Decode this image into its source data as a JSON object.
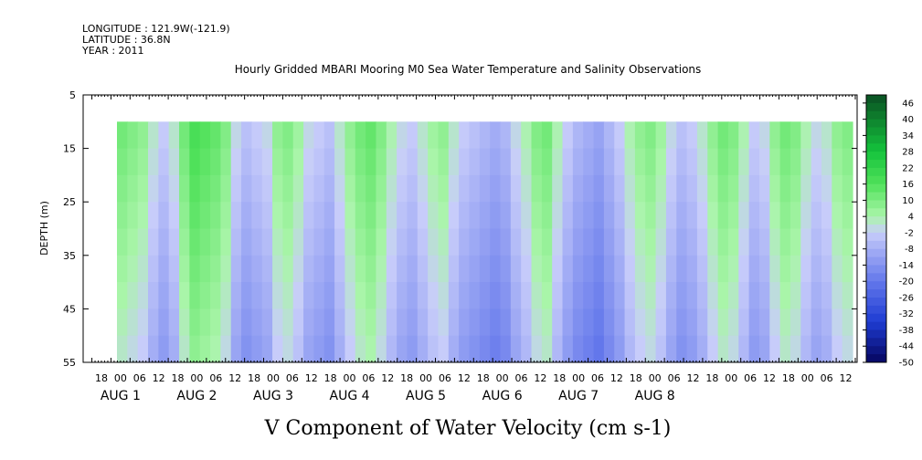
{
  "header": {
    "longitude": "LONGITUDE : 121.9W(-121.9)",
    "latitude": "LATITUDE : 36.8N",
    "year": "YEAR : 2011"
  },
  "chart_data": {
    "type": "heatmap",
    "title": "Hourly Gridded MBARI Mooring M0 Sea Water Temperature and Salinity Observations",
    "xlabel": "V Component of Water Velocity (cm s-1)",
    "ylabel": "DEPTH (m)",
    "y_ticks": [
      "5",
      "15",
      "25",
      "35",
      "45",
      "55"
    ],
    "ylim": [
      5,
      55
    ],
    "y_inverted": true,
    "data_depth_range": [
      10,
      55
    ],
    "hour_ticks": [
      "18",
      "00",
      "06",
      "12",
      "18",
      "00",
      "06",
      "12",
      "18",
      "00",
      "06",
      "12",
      "18",
      "00",
      "06",
      "12",
      "18",
      "00",
      "06",
      "12",
      "18",
      "00",
      "06",
      "12",
      "18",
      "00",
      "06",
      "12",
      "18",
      "00",
      "06",
      "12",
      "18",
      "00",
      "06",
      "12",
      "18",
      "00",
      "06",
      "12"
    ],
    "day_labels": [
      "AUG  1",
      "AUG  2",
      "AUG  3",
      "AUG  4",
      "AUG  5",
      "AUG  6",
      "AUG  7",
      "AUG  8"
    ],
    "colorbar_ticks": [
      "46",
      "40",
      "34",
      "28",
      "22",
      "16",
      "10",
      "4",
      "-2",
      "-8",
      "-14",
      "-20",
      "-26",
      "-32",
      "-38",
      "-44",
      "-50"
    ],
    "colorbar_range": [
      -50,
      49
    ],
    "column_values": [
      6,
      4,
      2,
      -4,
      -8,
      -4,
      6,
      12,
      10,
      8,
      4,
      -6,
      -10,
      -8,
      -6,
      2,
      4,
      0,
      -6,
      -8,
      -10,
      -4,
      2,
      6,
      8,
      4,
      -2,
      -6,
      -8,
      -4,
      0,
      2,
      -4,
      -8,
      -10,
      -12,
      -14,
      -12,
      -6,
      -2,
      4,
      6,
      -2,
      -8,
      -12,
      -14,
      -16,
      -12,
      -8,
      -2,
      2,
      4,
      0,
      -6,
      -10,
      -8,
      -4,
      2,
      6,
      4,
      -2,
      -8,
      -6,
      2,
      6,
      4,
      -2,
      -6,
      -4,
      2,
      4
    ],
    "depth_gradient": -0.12
  }
}
